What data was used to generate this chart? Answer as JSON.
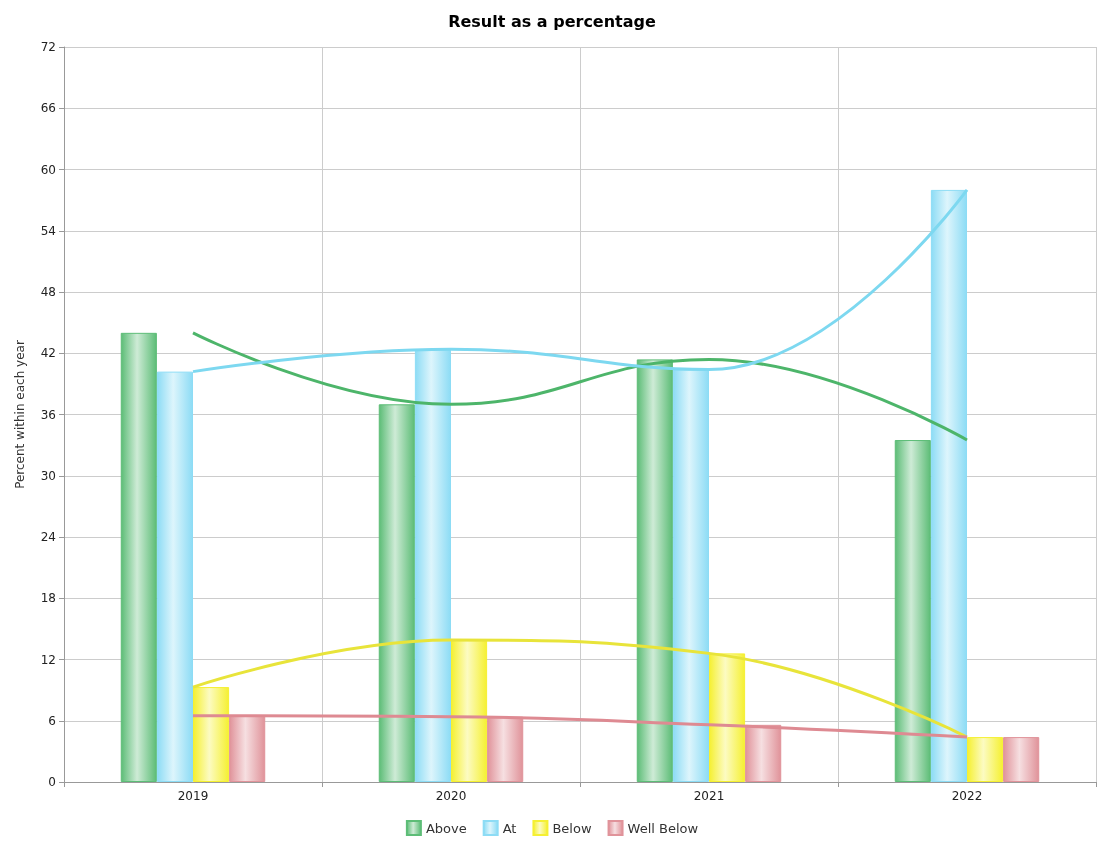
{
  "chart_data": {
    "type": "bar",
    "title": "Result as a percentage",
    "ylabel": "Percent within each year",
    "categories": [
      "2019",
      "2020",
      "2021",
      "2022"
    ],
    "series": [
      {
        "name": "Above",
        "color": "#5dbd77",
        "values": [
          44.0,
          37.0,
          41.4,
          33.5
        ]
      },
      {
        "name": "At",
        "color": "#8ddcf5",
        "values": [
          40.2,
          42.4,
          40.4,
          58.0
        ]
      },
      {
        "name": "Below",
        "color": "#f5f032",
        "values": [
          9.3,
          13.9,
          12.6,
          4.4
        ]
      },
      {
        "name": "Well Below",
        "color": "#e0939a",
        "values": [
          6.5,
          6.4,
          5.6,
          4.4
        ]
      },
      {
        "type": "line",
        "color": "#4db56a",
        "marker": "none",
        "values": [
          44.0,
          37.0,
          41.4,
          33.5
        ]
      },
      {
        "type": "line",
        "color": "#7dd8f0",
        "marker": "none",
        "values": [
          40.2,
          42.4,
          40.4,
          58.0
        ]
      },
      {
        "type": "line",
        "color": "#e8e43a",
        "marker": "none",
        "values": [
          9.3,
          13.9,
          12.6,
          4.4
        ]
      },
      {
        "type": "line",
        "color": "#de8a92",
        "marker": "none",
        "values": [
          6.5,
          6.4,
          5.6,
          4.4
        ]
      }
    ],
    "ylim": [
      0,
      72
    ],
    "yticks": [
      0,
      6,
      12,
      18,
      24,
      30,
      36,
      42,
      48,
      54,
      60,
      66,
      72
    ],
    "grid": true,
    "legend": "bottom"
  }
}
